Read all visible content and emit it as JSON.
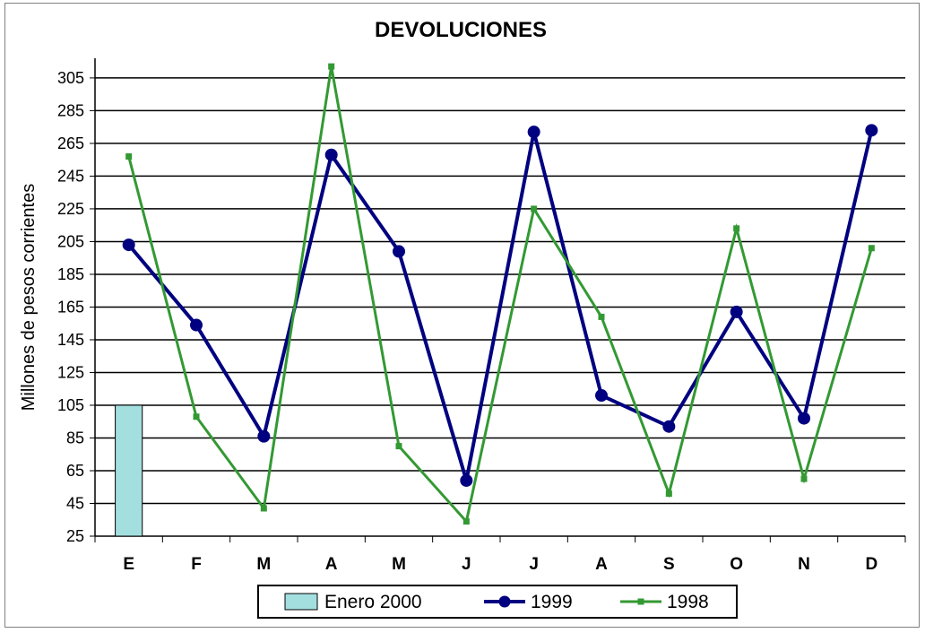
{
  "chart_data": {
    "type": "line",
    "title": "DEVOLUCIONES",
    "xlabel": "",
    "ylabel": "Millones de pesos corrientes",
    "categories": [
      "E",
      "F",
      "M",
      "A",
      "M",
      "J",
      "J",
      "A",
      "S",
      "O",
      "N",
      "D"
    ],
    "y_ticks": [
      25,
      45,
      65,
      85,
      105,
      125,
      145,
      165,
      185,
      205,
      225,
      245,
      265,
      285,
      305
    ],
    "ylim": [
      25,
      317
    ],
    "grid": "horizontal",
    "legend_position": "bottom",
    "series": [
      {
        "name": "Enero 2000",
        "kind": "bar",
        "color": "#a4dfe0",
        "values": [
          105,
          null,
          null,
          null,
          null,
          null,
          null,
          null,
          null,
          null,
          null,
          null
        ]
      },
      {
        "name": "1999",
        "kind": "line",
        "color": "#000080",
        "marker": "circle",
        "values": [
          203,
          154,
          86,
          258,
          199,
          59,
          272,
          111,
          92,
          162,
          97,
          273
        ]
      },
      {
        "name": "1998",
        "kind": "line",
        "color": "#339933",
        "marker": "square",
        "values": [
          257,
          98,
          42,
          312,
          80,
          34,
          225,
          159,
          51,
          213,
          60,
          201
        ]
      }
    ]
  }
}
